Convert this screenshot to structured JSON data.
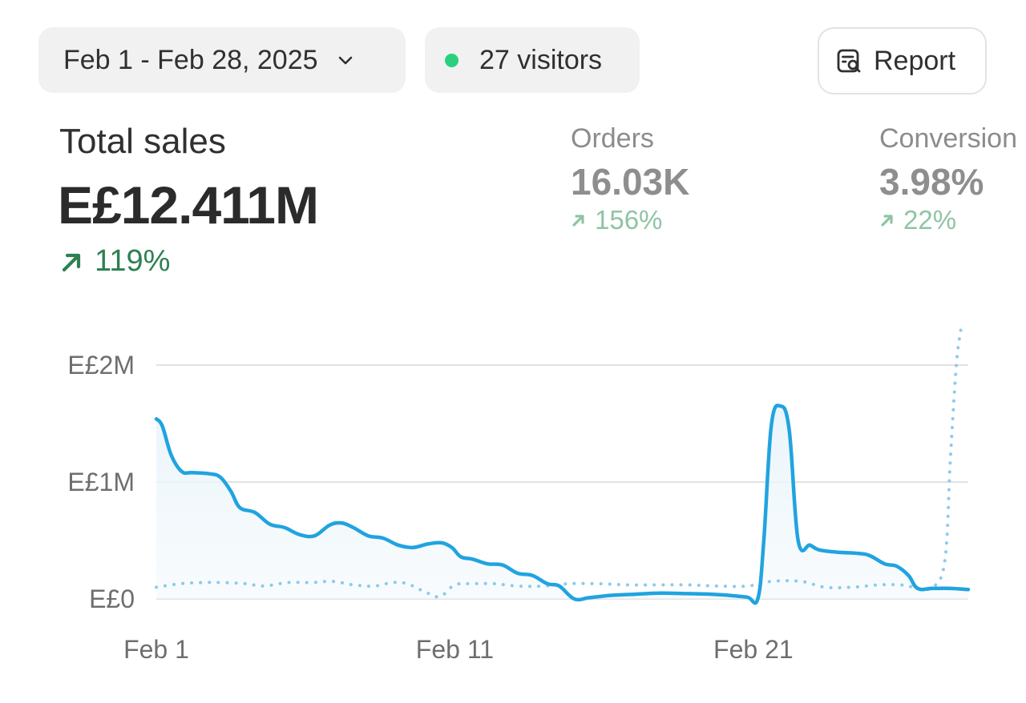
{
  "toolbar": {
    "date_range": "Feb 1 - Feb 28, 2025",
    "visitors": "27 visitors",
    "report_label": "Report"
  },
  "metrics": {
    "total_sales": {
      "label": "Total sales",
      "value": "E£12.411M",
      "change": "119%"
    },
    "orders": {
      "label": "Orders",
      "value": "16.03K",
      "change": "156%"
    },
    "conversion": {
      "label": "Conversion",
      "value": "3.98%",
      "change": "22%"
    }
  },
  "colors": {
    "accent": "#21a3e0",
    "positive": "#2e8052",
    "positive_muted": "#8fc4a4",
    "live_dot": "#29d17f"
  },
  "chart_data": {
    "type": "line",
    "title": "",
    "xlabel": "",
    "ylabel": "",
    "ylim": [
      0,
      2000000
    ],
    "y_ticks": [
      {
        "value": 2000000,
        "label": "E£2M"
      },
      {
        "value": 1000000,
        "label": "E£1M"
      },
      {
        "value": 0,
        "label": "E£0"
      }
    ],
    "x_ticks": [
      {
        "x": 1,
        "label": "Feb 1"
      },
      {
        "x": 11,
        "label": "Feb 11"
      },
      {
        "x": 21,
        "label": "Feb 21"
      }
    ],
    "xlim": [
      1,
      28.2
    ],
    "grid": true,
    "series": [
      {
        "name": "current",
        "style": "solid",
        "points": [
          [
            1,
            1540000
          ],
          [
            1.2,
            1480000
          ],
          [
            1.5,
            1230000
          ],
          [
            1.85,
            1090000
          ],
          [
            2.2,
            1080000
          ],
          [
            2.8,
            1070000
          ],
          [
            3.15,
            1040000
          ],
          [
            3.5,
            920000
          ],
          [
            3.8,
            780000
          ],
          [
            4.3,
            740000
          ],
          [
            4.8,
            640000
          ],
          [
            5.3,
            610000
          ],
          [
            5.8,
            550000
          ],
          [
            6.3,
            540000
          ],
          [
            6.8,
            630000
          ],
          [
            7.2,
            650000
          ],
          [
            7.6,
            610000
          ],
          [
            8.1,
            540000
          ],
          [
            8.6,
            520000
          ],
          [
            9.1,
            460000
          ],
          [
            9.6,
            440000
          ],
          [
            10.1,
            470000
          ],
          [
            10.55,
            480000
          ],
          [
            10.9,
            440000
          ],
          [
            11.2,
            360000
          ],
          [
            11.6,
            340000
          ],
          [
            12.1,
            300000
          ],
          [
            12.6,
            290000
          ],
          [
            13.1,
            220000
          ],
          [
            13.6,
            200000
          ],
          [
            14.1,
            130000
          ],
          [
            14.5,
            110000
          ],
          [
            15,
            0
          ],
          [
            15.5,
            10000
          ],
          [
            16.2,
            30000
          ],
          [
            17,
            40000
          ],
          [
            17.9,
            50000
          ],
          [
            18.8,
            45000
          ],
          [
            19.6,
            40000
          ],
          [
            20.2,
            30000
          ],
          [
            20.8,
            15000
          ],
          [
            21.15,
            0
          ],
          [
            21.35,
            500000
          ],
          [
            21.6,
            1480000
          ],
          [
            21.9,
            1650000
          ],
          [
            22.2,
            1450000
          ],
          [
            22.5,
            500000
          ],
          [
            22.9,
            460000
          ],
          [
            23.2,
            420000
          ],
          [
            23.8,
            400000
          ],
          [
            24.5,
            390000
          ],
          [
            24.9,
            370000
          ],
          [
            25.4,
            300000
          ],
          [
            25.8,
            280000
          ],
          [
            26.2,
            200000
          ],
          [
            26.5,
            90000
          ],
          [
            27,
            90000
          ],
          [
            27.6,
            90000
          ],
          [
            28.2,
            80000
          ]
        ]
      },
      {
        "name": "comparison",
        "style": "dotted",
        "points": [
          [
            1,
            100000
          ],
          [
            1.8,
            130000
          ],
          [
            2.5,
            140000
          ],
          [
            3.2,
            140000
          ],
          [
            4,
            130000
          ],
          [
            4.6,
            110000
          ],
          [
            5.4,
            140000
          ],
          [
            6.2,
            140000
          ],
          [
            6.9,
            150000
          ],
          [
            7.6,
            120000
          ],
          [
            8.3,
            110000
          ],
          [
            8.9,
            140000
          ],
          [
            9.4,
            130000
          ],
          [
            10,
            60000
          ],
          [
            10.5,
            20000
          ],
          [
            11,
            120000
          ],
          [
            11.6,
            130000
          ],
          [
            12.3,
            130000
          ],
          [
            13.1,
            110000
          ],
          [
            14,
            110000
          ],
          [
            14.8,
            130000
          ],
          [
            15.8,
            130000
          ],
          [
            16.8,
            120000
          ],
          [
            17.8,
            120000
          ],
          [
            18.8,
            120000
          ],
          [
            19.8,
            110000
          ],
          [
            20.8,
            110000
          ],
          [
            21.6,
            150000
          ],
          [
            22.6,
            150000
          ],
          [
            23.4,
            100000
          ],
          [
            24.3,
            100000
          ],
          [
            25.2,
            120000
          ],
          [
            25.9,
            120000
          ],
          [
            26.4,
            100000
          ],
          [
            26.9,
            90000
          ],
          [
            27.4,
            300000
          ],
          [
            27.6,
            1200000
          ],
          [
            27.8,
            2000000
          ],
          [
            27.95,
            2300000
          ]
        ]
      }
    ]
  }
}
